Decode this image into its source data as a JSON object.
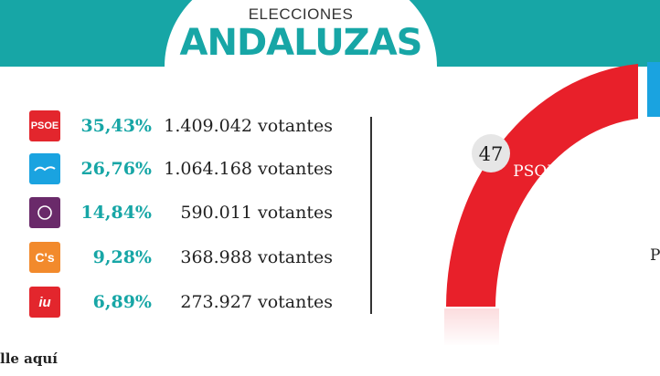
{
  "header": {
    "title_small": "ELECCIONES",
    "title_big": "ANDALUZAS"
  },
  "results": [
    {
      "party": "PSOE",
      "logo_text": "PSOE",
      "color": "#e3262d",
      "percent": "35,43%",
      "votes": "1.409.042 votantes"
    },
    {
      "party": "PP",
      "logo_text": "PP",
      "color": "#1aa3e0",
      "percent": "26,76%",
      "votes": "1.064.168 votantes"
    },
    {
      "party": "Podemos",
      "logo_text": "",
      "color": "#6a2a6a",
      "percent": "14,84%",
      "votes": "590.011 votantes"
    },
    {
      "party": "C's",
      "logo_text": "C's",
      "color": "#f28a2c",
      "percent": "9,28%",
      "votes": "368.988 votantes"
    },
    {
      "party": "IU",
      "logo_text": "iu",
      "color": "#e3262d",
      "percent": "6,89%",
      "votes": "273.927 votantes"
    }
  ],
  "footer": {
    "text": "lle aquí"
  },
  "chart_data": {
    "type": "pie",
    "segments": [
      {
        "label": "PSOE",
        "seats": "47",
        "color": "#e8202a"
      },
      {
        "label": "P",
        "seats": "",
        "color": "#1aa3e0"
      }
    ]
  }
}
